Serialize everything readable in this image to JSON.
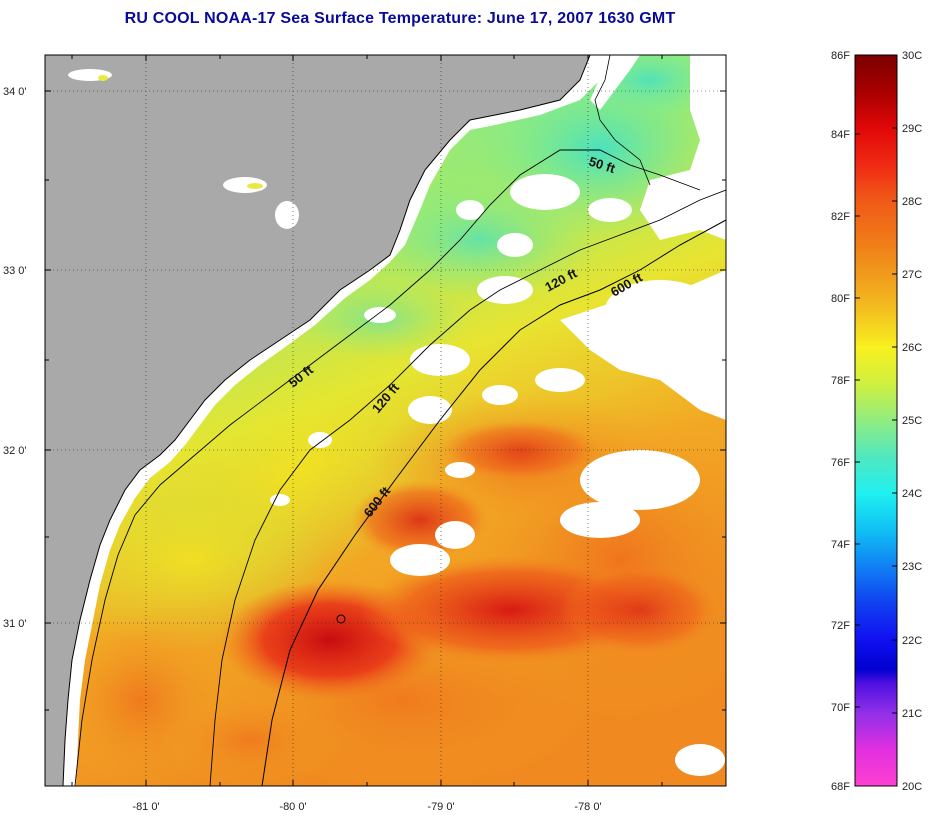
{
  "title": "RU COOL  NOAA-17  Sea Surface Temperature:  June 17, 2007 1630 GMT",
  "map": {
    "lat_ticks": [
      {
        "label": "34 0'",
        "value": 34
      },
      {
        "label": "33 0'",
        "value": 33
      },
      {
        "label": "32 0'",
        "value": 32
      },
      {
        "label": "31 0'",
        "value": 31
      }
    ],
    "lon_ticks": [
      {
        "label": "-81 0'",
        "value": -81
      },
      {
        "label": "-80 0'",
        "value": -80
      },
      {
        "label": "-79 0'",
        "value": -79
      },
      {
        "label": "-78 0'",
        "value": -78
      }
    ],
    "lat_range": [
      30.15,
      34.2
    ],
    "lon_range": [
      -81.7,
      -76.9
    ],
    "grid": true,
    "contours": [
      {
        "label": "50 ft"
      },
      {
        "label": "50 ft"
      },
      {
        "label": "120 ft"
      },
      {
        "label": "120 ft"
      },
      {
        "label": "600 ft"
      },
      {
        "label": "600 ft"
      }
    ],
    "colors": {
      "land": "#a9a9a9",
      "cloud": "#ffffff",
      "warm": "#d81818",
      "mid": "#f0a020",
      "cool": "#60e8b0"
    }
  },
  "colorbar": {
    "fahrenheit": [
      "86F",
      "84F",
      "82F",
      "80F",
      "78F",
      "76F",
      "74F",
      "72F",
      "70F",
      "68F"
    ],
    "celsius": [
      "30C",
      "29C",
      "28C",
      "27C",
      "26C",
      "25C",
      "24C",
      "23C",
      "22C",
      "21C",
      "20C"
    ],
    "range_c": [
      20,
      30
    ]
  }
}
